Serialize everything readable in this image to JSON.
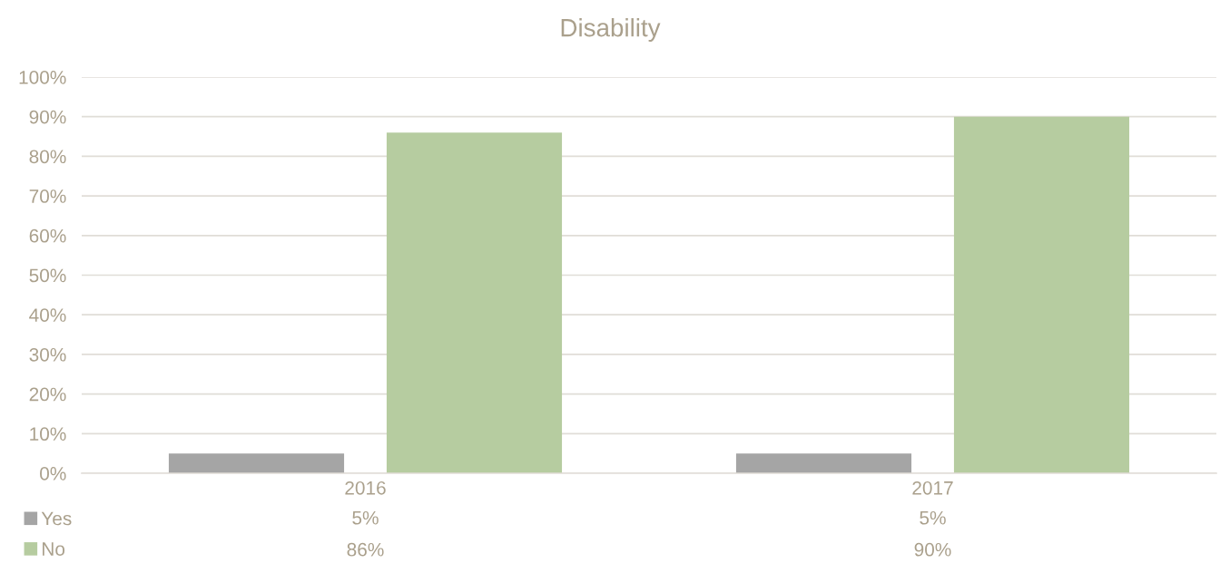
{
  "chart_data": {
    "type": "bar",
    "title": "Disability",
    "categories": [
      "2016",
      "2017"
    ],
    "series": [
      {
        "name": "Yes",
        "color": "#a5a5a5",
        "values": [
          5,
          5
        ],
        "value_labels": [
          "5%",
          "5%"
        ]
      },
      {
        "name": "No",
        "color": "#b6cca0",
        "values": [
          86,
          90
        ],
        "value_labels": [
          "86%",
          "90%"
        ]
      }
    ],
    "ylim": [
      0,
      100
    ],
    "yticks": [
      {
        "value": 0,
        "label": "0%"
      },
      {
        "value": 10,
        "label": "10%"
      },
      {
        "value": 20,
        "label": "20%"
      },
      {
        "value": 30,
        "label": "30%"
      },
      {
        "value": 40,
        "label": "40%"
      },
      {
        "value": 50,
        "label": "50%"
      },
      {
        "value": 60,
        "label": "60%"
      },
      {
        "value": 70,
        "label": "70%"
      },
      {
        "value": 80,
        "label": "80%"
      },
      {
        "value": 90,
        "label": "90%"
      },
      {
        "value": 100,
        "label": "100%"
      }
    ],
    "grid": "y",
    "legend": "bottom left"
  }
}
